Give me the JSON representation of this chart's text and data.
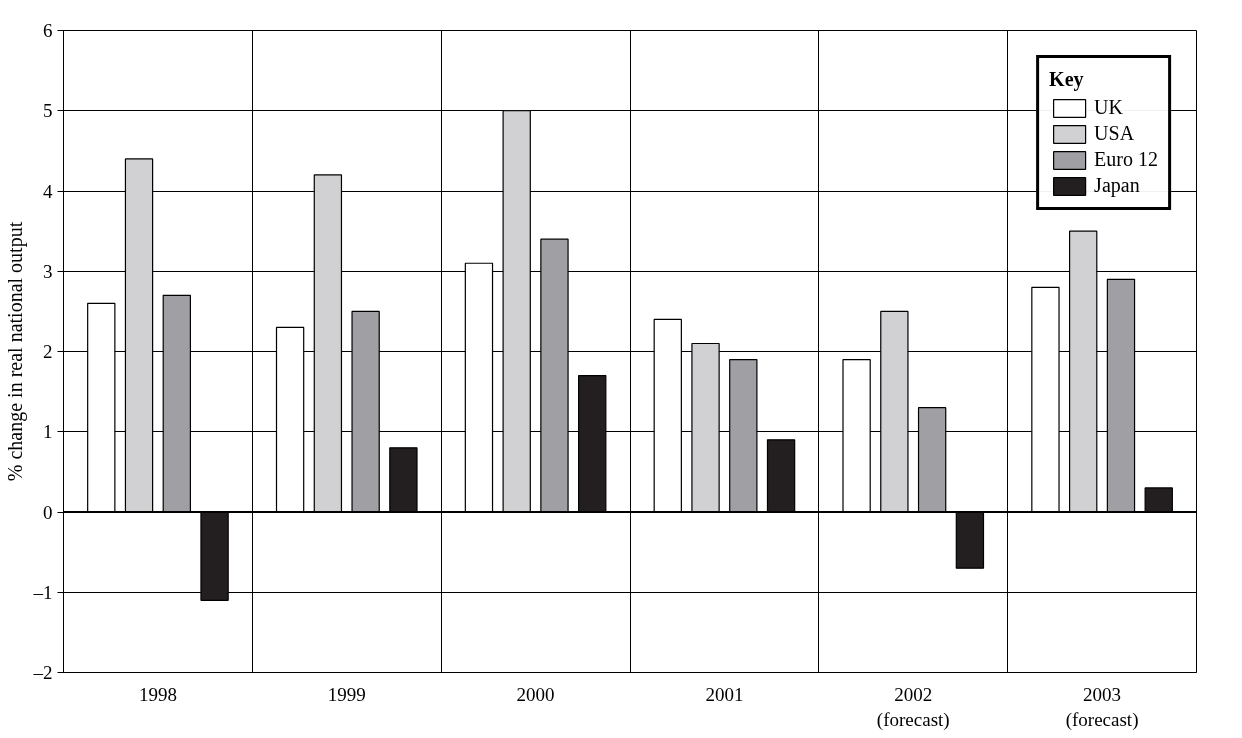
{
  "chart_data": {
    "type": "bar",
    "ylabel": "% change in real national output",
    "categories": [
      "1998",
      "1999",
      "2000",
      "2001",
      "2002\n(forecast)",
      "2003\n(forecast)"
    ],
    "series": [
      {
        "name": "UK",
        "color": "#ffffff",
        "values": [
          2.6,
          2.3,
          3.1,
          2.4,
          1.9,
          2.8
        ]
      },
      {
        "name": "USA",
        "color": "#d1d1d3",
        "values": [
          4.4,
          4.2,
          5.0,
          2.1,
          2.5,
          3.5
        ]
      },
      {
        "name": "Euro 12",
        "color": "#a0a0a4",
        "values": [
          2.7,
          2.5,
          3.4,
          1.9,
          1.3,
          2.9
        ]
      },
      {
        "name": "Japan",
        "color": "#231f20",
        "values": [
          -1.1,
          0.8,
          1.7,
          0.9,
          -0.7,
          0.3
        ]
      }
    ],
    "legend_title": "Key",
    "legend": "top right",
    "ylim": [
      -2,
      6
    ],
    "yticks": [
      {
        "value": -2,
        "label": "–2"
      },
      {
        "value": -1,
        "label": "–1"
      },
      0,
      1,
      2,
      3,
      4,
      5,
      6
    ],
    "grid": true
  }
}
